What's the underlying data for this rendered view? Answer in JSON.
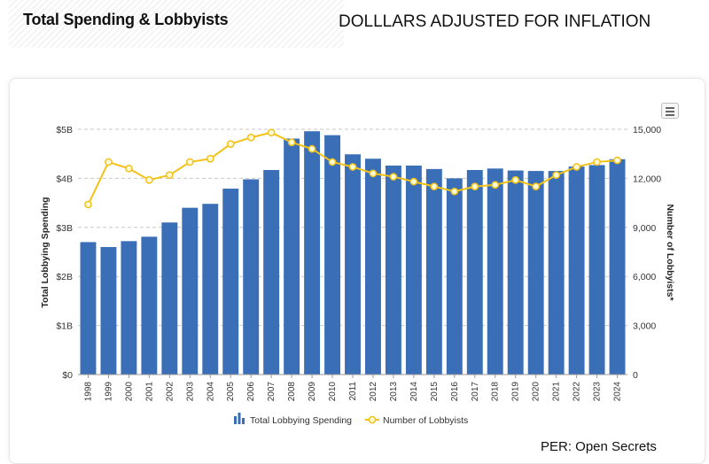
{
  "header": {
    "title": "Total Spending & Lobbyists",
    "subtitle": "DOLLLARS ADJUSTED FOR INFLATION"
  },
  "source_note": "PER: Open Secrets",
  "colors": {
    "bar": "#3a6fb8",
    "line": "#f2c218",
    "grid": "#c8c8c8"
  },
  "menu_icon": "hamburger-menu-icon",
  "chart_data": {
    "type": "bar",
    "categories": [
      "1998",
      "1999",
      "2000",
      "2001",
      "2002",
      "2003",
      "2004",
      "2005",
      "2006",
      "2007",
      "2008",
      "2009",
      "2010",
      "2011",
      "2012",
      "2013",
      "2014",
      "2015",
      "2016",
      "2017",
      "2018",
      "2019",
      "2020",
      "2021",
      "2022",
      "2023",
      "2024"
    ],
    "series": [
      {
        "name": "Total Lobbying Spending",
        "type": "bar",
        "axis": "left",
        "values": [
          2.7,
          2.6,
          2.72,
          2.81,
          3.1,
          3.4,
          3.48,
          3.79,
          3.98,
          4.17,
          4.81,
          4.96,
          4.88,
          4.49,
          4.4,
          4.26,
          4.26,
          4.19,
          4.0,
          4.17,
          4.2,
          4.16,
          4.15,
          4.15,
          4.24,
          4.27,
          4.39
        ]
      },
      {
        "name": "Number of Lobbyists",
        "type": "line",
        "axis": "right",
        "values": [
          10400,
          13000,
          12600,
          11900,
          12200,
          13000,
          13200,
          14100,
          14500,
          14800,
          14200,
          13800,
          13000,
          12700,
          12300,
          12100,
          11800,
          11500,
          11200,
          11500,
          11600,
          11900,
          11500,
          12200,
          12700,
          13000,
          13100
        ]
      }
    ],
    "ylabel": "Total Lobbying Spending",
    "y2label": "Number of Lobbyists*",
    "ylim": [
      0,
      5
    ],
    "y2lim": [
      0,
      15000
    ],
    "yticks": [
      "$0",
      "$1B",
      "$2B",
      "$3B",
      "$4B",
      "$5B"
    ],
    "y2ticks": [
      "0",
      "3,000",
      "6,000",
      "9,000",
      "12,000",
      "15,000"
    ],
    "grid": true,
    "legend_position": "bottom-center"
  }
}
